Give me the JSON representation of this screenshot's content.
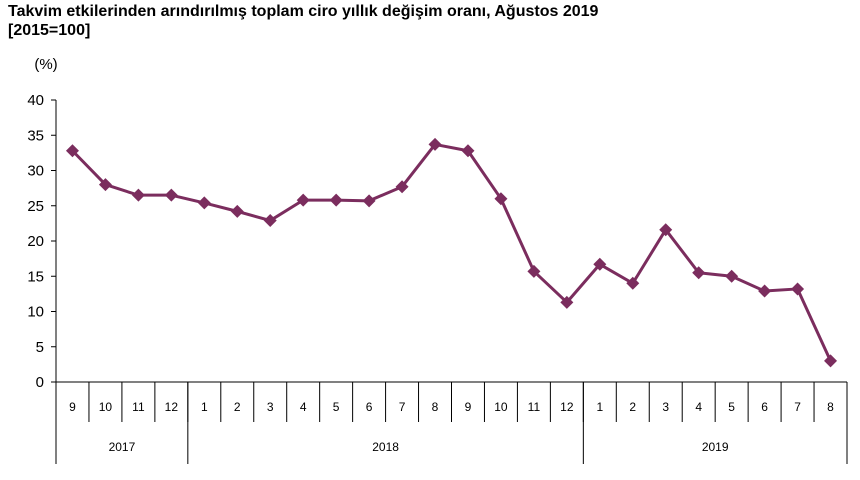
{
  "chart_data": {
    "type": "line",
    "title": "Takvim etkilerinden arındırılmış toplam ciro yıllık değişim oranı, Ağustos 2019",
    "subtitle": "[2015=100]",
    "unit_label": "(%)",
    "ylim": [
      0,
      40
    ],
    "yticks": [
      "0",
      "5",
      "10",
      "15",
      "20",
      "25",
      "30",
      "35",
      "40"
    ],
    "grid": false,
    "legend": "none",
    "categories": [
      "9",
      "10",
      "11",
      "12",
      "1",
      "2",
      "3",
      "4",
      "5",
      "6",
      "7",
      "8",
      "9",
      "10",
      "11",
      "12",
      "1",
      "2",
      "3",
      "4",
      "5",
      "6",
      "7",
      "8"
    ],
    "year_groups": [
      {
        "label": "2017",
        "count": 4
      },
      {
        "label": "2018",
        "count": 12
      },
      {
        "label": "2019",
        "count": 8
      }
    ],
    "series": [
      {
        "values": [
          32.8,
          28.0,
          26.5,
          26.5,
          25.4,
          24.2,
          22.9,
          25.8,
          25.8,
          25.7,
          27.7,
          33.7,
          32.8,
          26.0,
          15.7,
          11.3,
          16.7,
          14.0,
          21.6,
          15.5,
          15.0,
          12.9,
          13.2,
          3.0
        ],
        "color": "#7b2d5e"
      }
    ]
  }
}
